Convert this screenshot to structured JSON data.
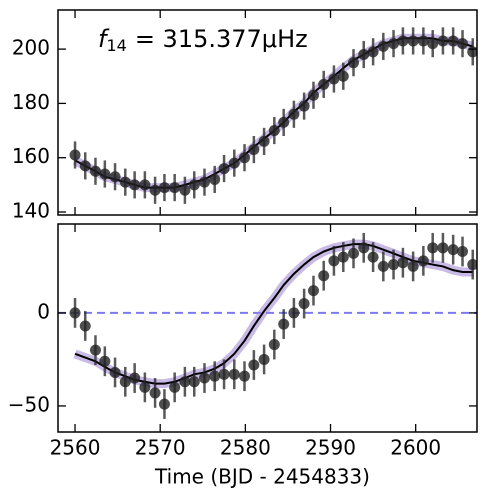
{
  "chart_data": [
    {
      "type": "errorbar-scatter",
      "annotation": {
        "symbol": "f",
        "subscript": "14",
        "text": "= 315.377μHz"
      },
      "x": [
        2560.0,
        2561.2,
        2562.4,
        2563.5,
        2564.7,
        2565.9,
        2567.0,
        2568.2,
        2569.4,
        2570.5,
        2571.7,
        2572.9,
        2574.0,
        2575.2,
        2576.4,
        2577.5,
        2578.7,
        2579.9,
        2581.0,
        2582.2,
        2583.4,
        2584.5,
        2585.7,
        2586.9,
        2588.0,
        2589.2,
        2590.4,
        2591.5,
        2592.7,
        2593.9,
        2595.0,
        2596.2,
        2597.4,
        2598.5,
        2599.7,
        2600.9,
        2602.0,
        2603.2,
        2604.4,
        2605.5,
        2606.7
      ],
      "series": [
        {
          "color": "#222222",
          "marker": true,
          "values": [
            161,
            157,
            155,
            154,
            153,
            151,
            150,
            150,
            148,
            149,
            149,
            148,
            150,
            151,
            152,
            156,
            158,
            160,
            163,
            166,
            170,
            173,
            176,
            179,
            183,
            187,
            189,
            190,
            195,
            198,
            199,
            201,
            202,
            203,
            203,
            203,
            202,
            203,
            203,
            202,
            199
          ],
          "errors": [
            5,
            5,
            5,
            5,
            5,
            5,
            5,
            5,
            5,
            5,
            5,
            5,
            5,
            5,
            5,
            5,
            5,
            5,
            5,
            5,
            5,
            5,
            5,
            5,
            5,
            5,
            5,
            5,
            5,
            5,
            5,
            5,
            5,
            5,
            5,
            5,
            5,
            5,
            5,
            5,
            5
          ]
        },
        {
          "color": "#000000",
          "band_color": "#9b7fd0",
          "marker": false,
          "values": [
            159,
            157,
            155,
            153,
            152,
            151,
            150,
            149,
            149,
            149,
            149,
            150,
            151,
            152,
            154,
            156,
            158,
            161,
            164,
            167,
            170,
            173,
            177,
            180,
            184,
            187,
            190,
            193,
            196,
            198,
            200,
            202,
            203,
            204,
            204,
            204,
            204,
            203,
            203,
            202,
            201
          ]
        }
      ],
      "xlim": [
        2558,
        2607.2
      ],
      "xticks": [
        2560,
        2570,
        2580,
        2590,
        2600
      ],
      "show_xtick_labels": false,
      "ylim": [
        138.9,
        214.4
      ],
      "yticks": [
        140,
        160,
        180,
        200
      ]
    },
    {
      "type": "errorbar-scatter",
      "x_label": "Time (BJD - 2454833)",
      "x": [
        2560.0,
        2561.2,
        2562.4,
        2563.5,
        2564.7,
        2565.9,
        2567.0,
        2568.2,
        2569.4,
        2570.5,
        2571.7,
        2572.9,
        2574.0,
        2575.2,
        2576.4,
        2577.5,
        2578.7,
        2579.9,
        2581.0,
        2582.2,
        2583.4,
        2584.5,
        2585.7,
        2586.9,
        2588.0,
        2589.2,
        2590.4,
        2591.5,
        2592.7,
        2593.9,
        2595.0,
        2596.2,
        2597.4,
        2598.5,
        2599.7,
        2600.9,
        2602.0,
        2603.2,
        2604.4,
        2605.5,
        2606.7
      ],
      "series": [
        {
          "color": "#222222",
          "marker": true,
          "values": [
            0,
            -7,
            -20,
            -26,
            -32,
            -37,
            -35,
            -40,
            -43,
            -49,
            -40,
            -37,
            -37,
            -35,
            -34,
            -33,
            -33,
            -34,
            -28,
            -25,
            -17,
            -6,
            0,
            5,
            12,
            20,
            28,
            30,
            32,
            35,
            30,
            25,
            26,
            27,
            25,
            28,
            35,
            35,
            34,
            33,
            26
          ],
          "errors": [
            8,
            8,
            8,
            8,
            8,
            8,
            8,
            8,
            8,
            8,
            8,
            8,
            8,
            8,
            8,
            8,
            8,
            8,
            8,
            8,
            8,
            8,
            8,
            8,
            8,
            8,
            8,
            8,
            8,
            8,
            8,
            8,
            8,
            8,
            8,
            8,
            8,
            8,
            8,
            8,
            8
          ]
        },
        {
          "color": "#000000",
          "band_color": "#9b7fd0",
          "marker": false,
          "values": [
            -22,
            -24,
            -26,
            -29,
            -32,
            -34,
            -36,
            -37,
            -38,
            -38,
            -37,
            -35,
            -33,
            -32,
            -30,
            -27,
            -22,
            -15,
            -7,
            1,
            8,
            15,
            21,
            26,
            30,
            33,
            35,
            36,
            37,
            37,
            36,
            34,
            32,
            30,
            28,
            27,
            26,
            25,
            23,
            22,
            22
          ]
        }
      ],
      "hline": {
        "value": 0,
        "color": "#7b7bef"
      },
      "xlim": [
        2558,
        2607.2
      ],
      "xticks": [
        2560,
        2570,
        2580,
        2590,
        2600
      ],
      "show_xtick_labels": true,
      "ylim": [
        -64,
        47.8
      ],
      "yticks": [
        {
          "value": -50,
          "label": "−50"
        },
        0
      ]
    }
  ]
}
